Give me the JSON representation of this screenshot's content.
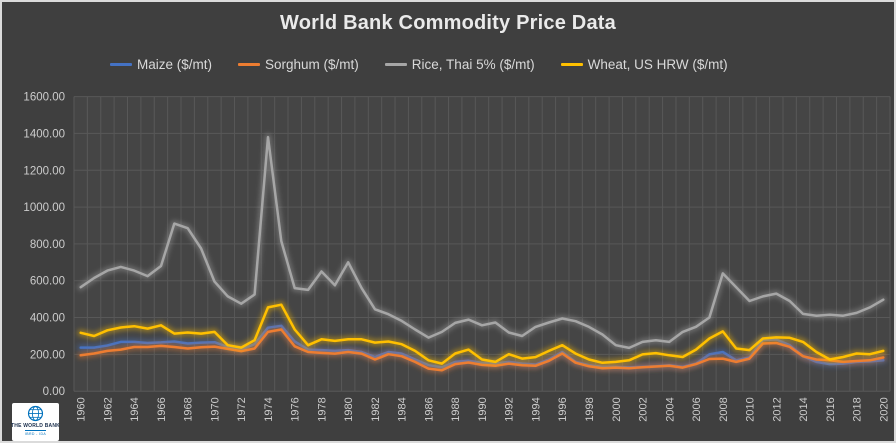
{
  "chart_data": {
    "type": "line",
    "title": "World Bank Commodity Price Data",
    "legend_position": "top",
    "grid": true,
    "background": "#3F3F3F",
    "gridline_color": "#585858",
    "tick_label_color": "#CCCCCC",
    "title_color": "#EAEAEA",
    "ylim": [
      0,
      1600
    ],
    "y_tick_step": 200,
    "y_tick_labels": [
      "0.00",
      "200.00",
      "400.00",
      "600.00",
      "800.00",
      "1000.00",
      "1200.00",
      "1400.00",
      "1600.00"
    ],
    "x_tick_interval": 2,
    "x_tick_labels": [
      "1960",
      "1962",
      "1964",
      "1966",
      "1968",
      "1970",
      "1972",
      "1974",
      "1976",
      "1978",
      "1980",
      "1982",
      "1984",
      "1986",
      "1988",
      "1990",
      "1992",
      "1994",
      "1996",
      "1998",
      "2000",
      "2002",
      "2004",
      "2006",
      "2008",
      "2010",
      "2012",
      "2014",
      "2016",
      "2018",
      "2020"
    ],
    "x": [
      1960,
      1961,
      1962,
      1963,
      1964,
      1965,
      1966,
      1967,
      1968,
      1969,
      1970,
      1971,
      1972,
      1973,
      1974,
      1975,
      1976,
      1977,
      1978,
      1979,
      1980,
      1981,
      1982,
      1983,
      1984,
      1985,
      1986,
      1987,
      1988,
      1989,
      1990,
      1991,
      1992,
      1993,
      1994,
      1995,
      1996,
      1997,
      1998,
      1999,
      2000,
      2001,
      2002,
      2003,
      2004,
      2005,
      2006,
      2007,
      2008,
      2009,
      2010,
      2011,
      2012,
      2013,
      2014,
      2015,
      2016,
      2017,
      2018,
      2019,
      2020
    ],
    "series": [
      {
        "name": "Maize ($/mt)",
        "color": "#4472C4",
        "values": [
          237,
          237,
          248,
          268,
          268,
          262,
          265,
          270,
          259,
          264,
          266,
          240,
          226,
          255,
          345,
          355,
          270,
          226,
          223,
          219,
          223,
          213,
          186,
          213,
          204,
          172,
          141,
          129,
          159,
          165,
          154,
          150,
          159,
          150,
          145,
          172,
          213,
          159,
          141,
          132,
          132,
          129,
          132,
          136,
          141,
          132,
          150,
          200,
          213,
          168,
          183,
          278,
          281,
          250,
          190,
          159,
          147,
          150,
          159,
          162,
          168
        ]
      },
      {
        "name": "Sorghum ($/mt)",
        "color": "#ED7D31",
        "values": [
          195,
          205,
          219,
          226,
          240,
          240,
          246,
          240,
          232,
          239,
          242,
          230,
          217,
          232,
          322,
          335,
          244,
          213,
          208,
          204,
          213,
          204,
          172,
          201,
          190,
          159,
          123,
          114,
          147,
          156,
          143,
          138,
          150,
          141,
          138,
          165,
          205,
          155,
          135,
          125,
          128,
          125,
          130,
          134,
          138,
          128,
          147,
          175,
          177,
          159,
          177,
          259,
          262,
          241,
          190,
          172,
          168,
          159,
          164,
          168,
          183
        ]
      },
      {
        "name": "Rice, Thai 5%  ($/mt)",
        "color": "#A6A6A6",
        "values": [
          565,
          615,
          655,
          675,
          655,
          625,
          680,
          910,
          885,
          775,
          595,
          515,
          475,
          525,
          1380,
          815,
          560,
          550,
          650,
          575,
          700,
          560,
          445,
          418,
          382,
          335,
          291,
          322,
          371,
          389,
          358,
          373,
          319,
          300,
          349,
          373,
          395,
          380,
          349,
          308,
          250,
          235,
          268,
          277,
          268,
          322,
          350,
          400,
          640,
          565,
          490,
          515,
          530,
          490,
          420,
          410,
          415,
          410,
          425,
          455,
          497
        ]
      },
      {
        "name": "Wheat, US HRW ($/mt)",
        "color": "#FFC000",
        "values": [
          317,
          300,
          331,
          346,
          353,
          340,
          358,
          313,
          319,
          313,
          322,
          250,
          237,
          277,
          455,
          470,
          335,
          250,
          282,
          273,
          282,
          282,
          264,
          270,
          255,
          219,
          168,
          150,
          205,
          226,
          172,
          159,
          201,
          177,
          185,
          219,
          250,
          204,
          172,
          154,
          159,
          168,
          200,
          207,
          195,
          186,
          226,
          286,
          325,
          232,
          223,
          286,
          292,
          290,
          268,
          213,
          172,
          186,
          205,
          201,
          219
        ]
      }
    ]
  },
  "logo": {
    "line1": "THE WORLD BANK",
    "line2": "IBRD - IDA"
  }
}
